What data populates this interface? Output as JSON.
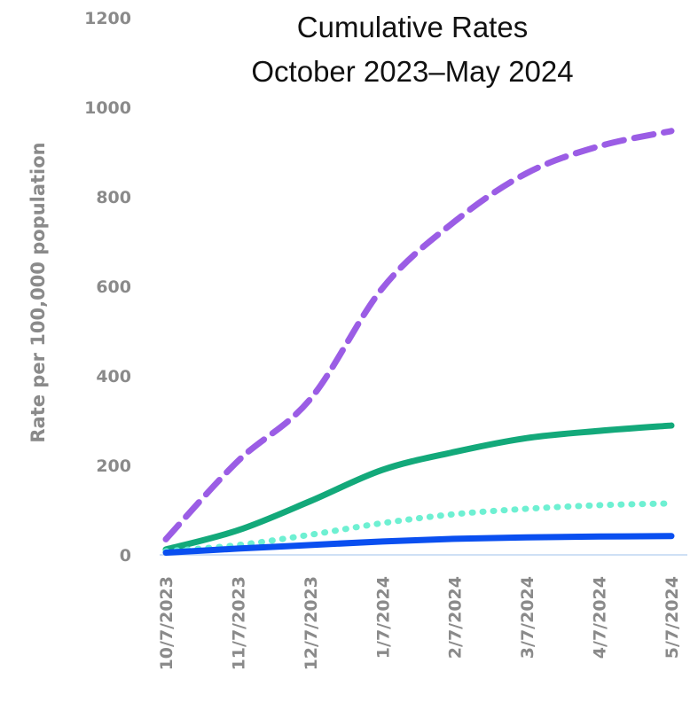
{
  "chart_data": {
    "type": "line",
    "title": [
      "Cumulative Rates",
      "October 2023–May 2024"
    ],
    "y_label": "Rate per 100,000 population",
    "x": [
      "10/7/2023",
      "11/7/2023",
      "12/7/2023",
      "1/7/2024",
      "2/7/2024",
      "3/7/2024",
      "4/7/2024",
      "5/7/2024"
    ],
    "series": [
      {
        "color": "#9b5de5",
        "style": "dashed",
        "values": [
          35,
          210,
          348,
          596,
          745,
          853,
          913,
          947
        ]
      },
      {
        "color": "#13a97a",
        "style": "solid",
        "values": [
          12,
          55,
          120,
          190,
          230,
          261,
          277,
          289
        ]
      },
      {
        "color": "#6ef0d2",
        "style": "dotted",
        "values": [
          8,
          22,
          45,
          71,
          91,
          103,
          111,
          115
        ]
      },
      {
        "color": "#0a4ff0",
        "style": "solid",
        "values": [
          5,
          14,
          22,
          30,
          36,
          39,
          41,
          42
        ]
      }
    ],
    "ylim": [
      0,
      1200
    ],
    "yticks": [
      0,
      200,
      400,
      600,
      800,
      1000,
      1200
    ],
    "grid": false
  }
}
